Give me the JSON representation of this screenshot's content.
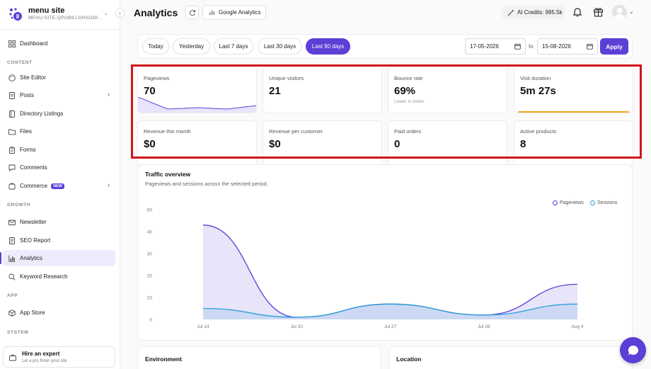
{
  "sidebar": {
    "brand_name": "menu site",
    "brand_sub": "MENU-SITE-QPOB9J.GRIGOR...",
    "items": [
      {
        "label": "Dashboard",
        "icon": "grid-icon"
      },
      {
        "label": "Site Editor",
        "icon": "palette-icon"
      },
      {
        "label": "Posts",
        "icon": "document-icon"
      },
      {
        "label": "Directory Listings",
        "icon": "book-icon"
      },
      {
        "label": "Files",
        "icon": "folder-icon"
      },
      {
        "label": "Forms",
        "icon": "clipboard-icon"
      },
      {
        "label": "Comments",
        "icon": "chat-icon"
      },
      {
        "label": "Commerce",
        "icon": "cart-icon",
        "badge": "NEW"
      },
      {
        "label": "Newsletter",
        "icon": "mail-icon"
      },
      {
        "label": "SEO Report",
        "icon": "report-icon"
      },
      {
        "label": "Analytics",
        "icon": "chart-icon",
        "active": true
      },
      {
        "label": "Keyword Research",
        "icon": "search-icon"
      },
      {
        "label": "App Store",
        "icon": "box-icon"
      }
    ],
    "sections": {
      "content": "CONTENT",
      "growth": "GROWTH",
      "app": "APP",
      "system": "SYSTEM"
    },
    "hire": {
      "title": "Hire an expert",
      "subtitle": "Let a pro finish your site"
    }
  },
  "header": {
    "title": "Analytics",
    "ga_button": "Google Analytics",
    "credits": "AI Credits: 995.5k"
  },
  "filters": {
    "ranges": [
      "Today",
      "Yesterday",
      "Last 7 days",
      "Last 30 days",
      "Last 90 days"
    ],
    "active_range": "Last 90 days",
    "date_from": "17-05-2026",
    "date_to": "15-08-2026",
    "to_label": "to",
    "apply_label": "Apply"
  },
  "kpis": [
    {
      "label": "Pageviews",
      "value": "70"
    },
    {
      "label": "Unique visitors",
      "value": "21"
    },
    {
      "label": "Bounce rate",
      "value": "69%",
      "note": "Lower is better"
    },
    {
      "label": "Visit duration",
      "value": "5m 27s"
    },
    {
      "label": "Revenue this month",
      "value": "$0"
    },
    {
      "label": "Revenue per customer",
      "value": "$0"
    },
    {
      "label": "Paid orders",
      "value": "0"
    },
    {
      "label": "Active products",
      "value": "8"
    }
  ],
  "traffic": {
    "title": "Traffic overview",
    "subtitle": "Pageviews and sessions across the selected period."
  },
  "panels": {
    "environment": "Environment",
    "location": "Location"
  },
  "colors": {
    "accent": "#5b3fd6",
    "sessions": "#2b9fd9",
    "highlight": "#d0161b",
    "duration_bar": "#f0a51c"
  },
  "chart_data": {
    "type": "area",
    "categories": [
      "Jul 14",
      "Jul 20",
      "Jul 27",
      "Jul 28",
      "Aug 4"
    ],
    "series": [
      {
        "name": "Pageviews",
        "values": [
          43,
          1,
          7,
          2,
          16
        ]
      },
      {
        "name": "Sessions",
        "values": [
          5,
          1,
          7,
          2,
          7
        ]
      }
    ],
    "yticks": [
      0,
      10,
      20,
      30,
      40,
      50
    ],
    "ylim": [
      0,
      50
    ],
    "legend": "top-right"
  }
}
